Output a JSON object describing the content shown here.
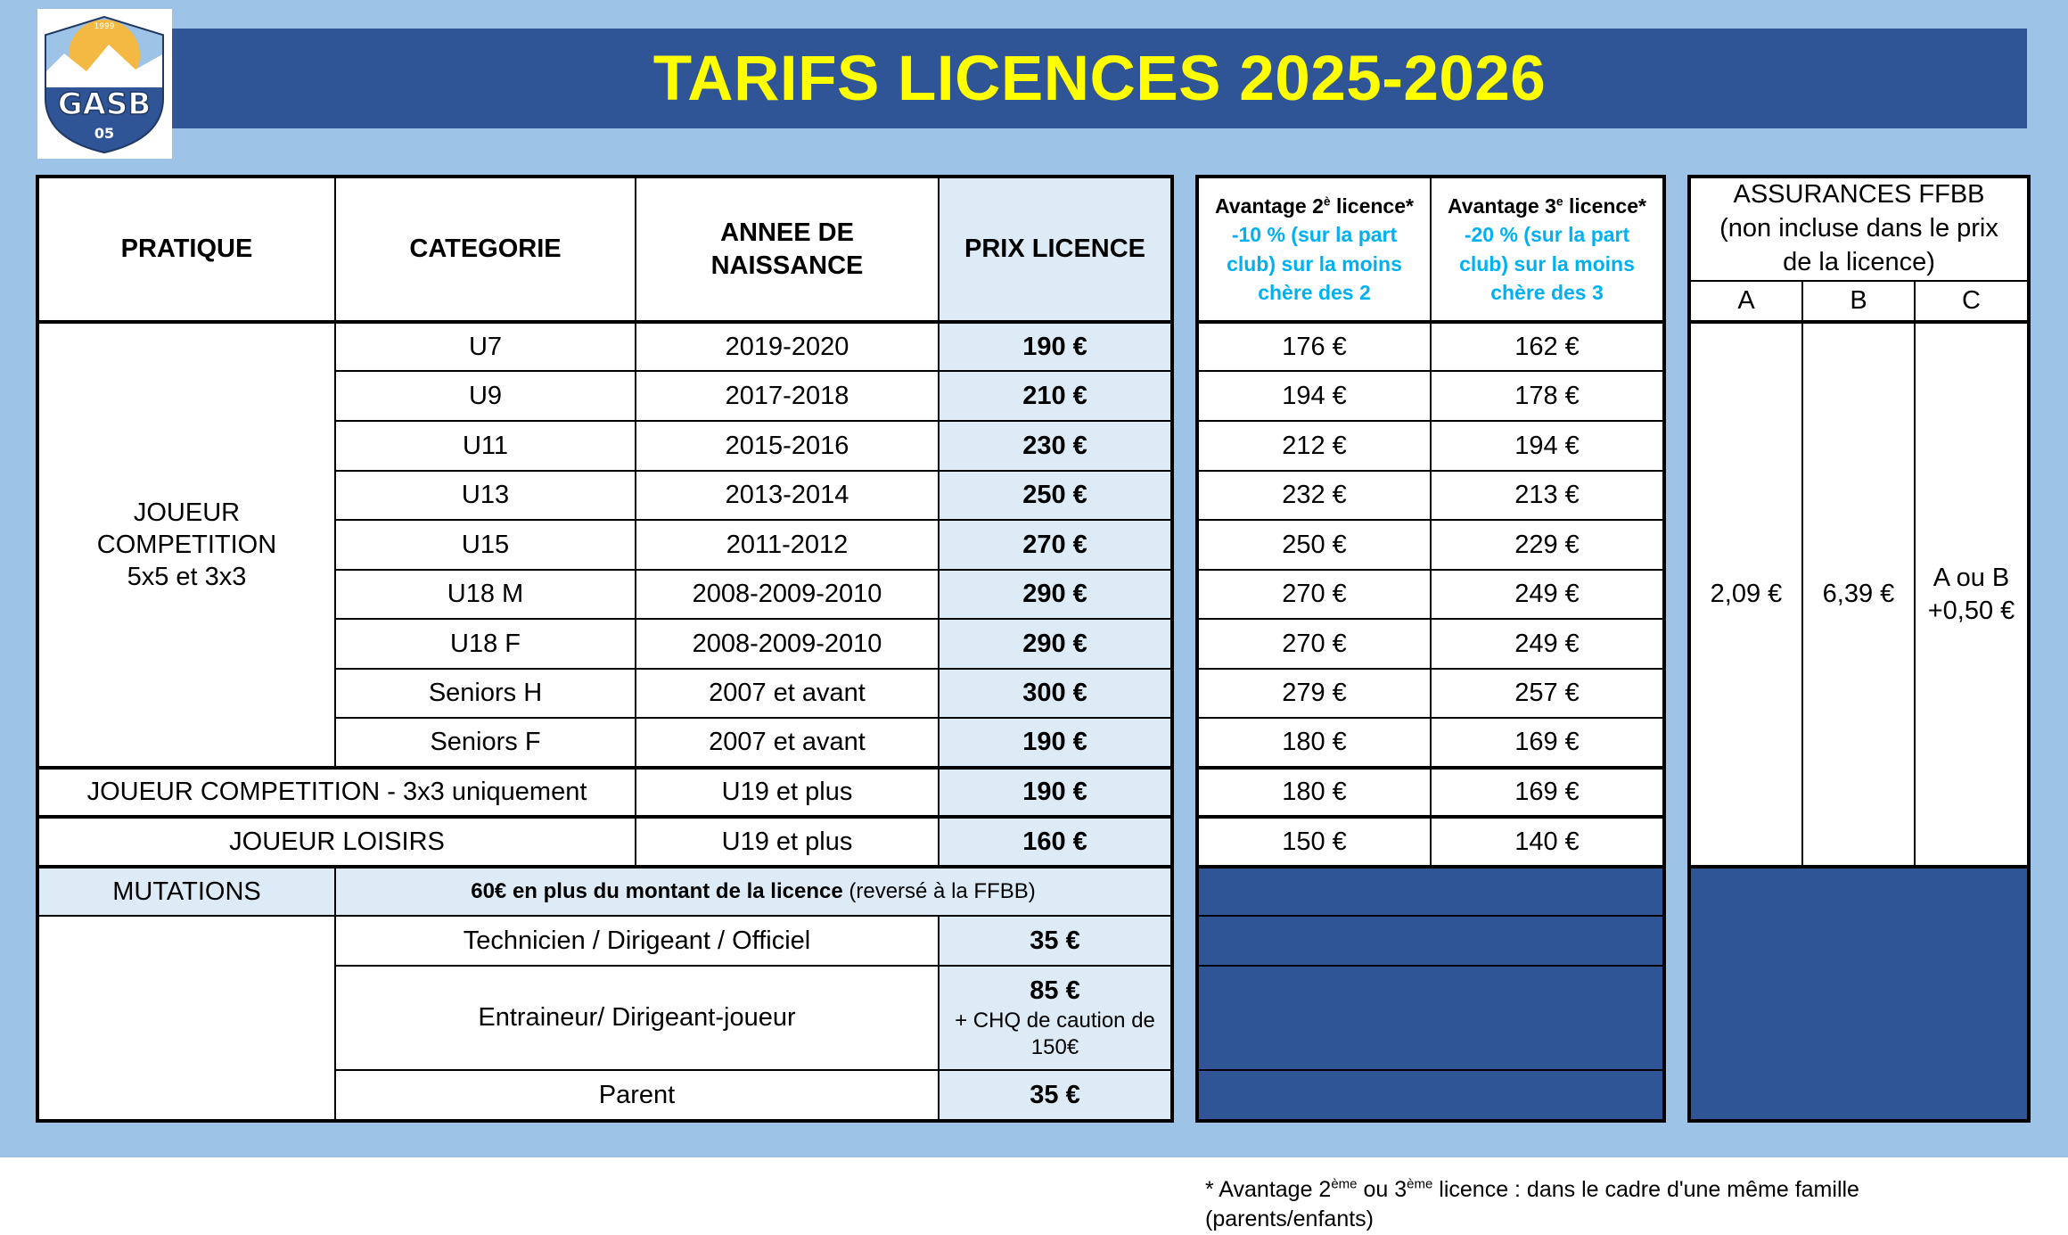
{
  "title": "TARIFS LICENCES 2025-2026",
  "logo": {
    "text": "GASB",
    "sub": "05",
    "year": "1999"
  },
  "main_table": {
    "headers": {
      "pratique": "PRATIQUE",
      "categorie": "CATEGORIE",
      "annee": "ANNEE DE NAISSANCE",
      "prix": "PRIX LICENCE"
    },
    "competition_label": [
      "JOUEUR",
      "COMPETITION",
      "5x5 et 3x3"
    ],
    "rows": [
      {
        "cat": "U7",
        "year": "2019-2020",
        "price": "190 €"
      },
      {
        "cat": "U9",
        "year": "2017-2018",
        "price": "210 €"
      },
      {
        "cat": "U11",
        "year": "2015-2016",
        "price": "230 €"
      },
      {
        "cat": "U13",
        "year": "2013-2014",
        "price": "250 €"
      },
      {
        "cat": "U15",
        "year": "2011-2012",
        "price": "270 €"
      },
      {
        "cat": "U18 M",
        "year": "2008-2009-2010",
        "price": "290 €"
      },
      {
        "cat": "U18 F",
        "year": "2008-2009-2010",
        "price": "290 €"
      },
      {
        "cat": "Seniors H",
        "year": "2007 et avant",
        "price": "300 €"
      },
      {
        "cat": "Seniors F",
        "year": "2007 et avant",
        "price": "190 €"
      }
    ],
    "comp3x3": {
      "label": "JOUEUR COMPETITION - 3x3 uniquement",
      "year": "U19 et plus",
      "price": "190 €"
    },
    "loisirs": {
      "label": "JOUEUR LOISIRS",
      "year": "U19 et plus",
      "price": "160 €"
    },
    "mutations": {
      "label": "MUTATIONS",
      "text_bold": "60€ en plus du montant de la licence",
      "text_normal": "(reversé à la FFBB)"
    },
    "staff": [
      {
        "label": "Technicien / Dirigeant / Officiel",
        "price": "35 €"
      },
      {
        "label": "Entraineur/ Dirigeant-joueur",
        "price": "85 €",
        "extra": "+ CHQ de caution de 150€"
      },
      {
        "label": "Parent",
        "price": "35 €"
      }
    ]
  },
  "advantage_table": {
    "h2": {
      "prefix": "Avantage 2",
      "sup": "è",
      "suffix": " licence*",
      "line1": "-10 % (sur la part",
      "line2": "club) sur la moins",
      "line3": "chère des 2"
    },
    "h3": {
      "prefix": "Avantage 3",
      "sup": "e",
      "suffix": " licence*",
      "line1": "-20 % (sur la part",
      "line2": "club) sur la moins",
      "line3": "chère des 3"
    },
    "rows": [
      [
        "176 €",
        "162 €"
      ],
      [
        "194 €",
        "178 €"
      ],
      [
        "212 €",
        "194 €"
      ],
      [
        "232 €",
        "213 €"
      ],
      [
        "250 €",
        "229 €"
      ],
      [
        "270 €",
        "249 €"
      ],
      [
        "270 €",
        "249 €"
      ],
      [
        "279 €",
        "257 €"
      ],
      [
        "180 €",
        "169 €"
      ],
      [
        "180 €",
        "169 €"
      ],
      [
        "150 €",
        "140 €"
      ]
    ]
  },
  "insurance_table": {
    "title1": "ASSURANCES FFBB",
    "title2": "(non incluse dans le prix",
    "title3": "de la licence)",
    "cols": [
      "A",
      "B",
      "C"
    ],
    "a": "2,09 €",
    "b": "6,39 €",
    "c1": "A ou B",
    "c2": "+0,50 €"
  },
  "footnote": {
    "p1": "* Avantage 2",
    "sup1": "ème",
    "p2": " ou 3",
    "sup2": "ème",
    "p3": " licence : dans le cadre d'une même famille",
    "line2": "(parents/enfants)"
  },
  "colors": {
    "banner": "#2f5597",
    "title": "#ffff00",
    "background": "#9dc3e6",
    "price_cell": "#ddebf7",
    "cyan_text": "#00b0f0"
  }
}
